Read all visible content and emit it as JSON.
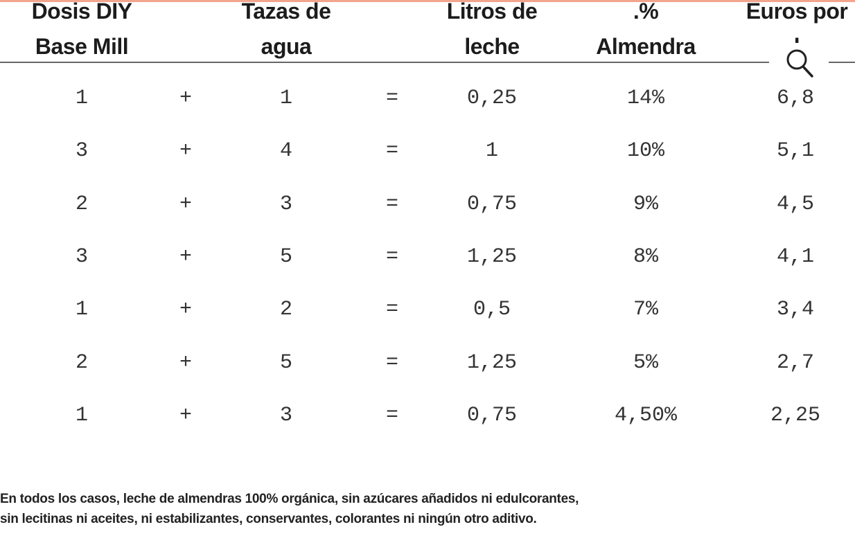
{
  "table": {
    "headers": [
      [
        "Dosis DIY",
        "Base Mill"
      ],
      [
        "Tazas de",
        "agua"
      ],
      [
        "Litros de",
        "leche"
      ],
      [
        ".%",
        "Almendra"
      ],
      [
        "Euros por",
        "l"
      ]
    ],
    "operators": {
      "plus": "+",
      "equals": "="
    },
    "rows": [
      [
        "1",
        "1",
        "0,25",
        "14%",
        "6,8"
      ],
      [
        "3",
        "4",
        "1",
        "10%",
        "5,1"
      ],
      [
        "2",
        "3",
        "0,75",
        "9%",
        "4,5"
      ],
      [
        "3",
        "5",
        "1,25",
        "8%",
        "4,1"
      ],
      [
        "1",
        "2",
        "0,5",
        "7%",
        "3,4"
      ],
      [
        "2",
        "5",
        "1,25",
        "5%",
        "2,7"
      ],
      [
        "1",
        "3",
        "0,75",
        "4,50%",
        "2,25"
      ]
    ]
  },
  "note": {
    "line1": "En todos los casos, leche de almendras 100% orgánica, sin azúcares añadidos ni edulcorantes,",
    "line2": "sin lecitinas ni aceites, ni estabilizantes, conservantes, colorantes ni ningún otro aditivo."
  },
  "overlay": {
    "icon": "search-icon"
  },
  "colors": {
    "top_accent": "#f2a58c",
    "rule": "#666666"
  }
}
